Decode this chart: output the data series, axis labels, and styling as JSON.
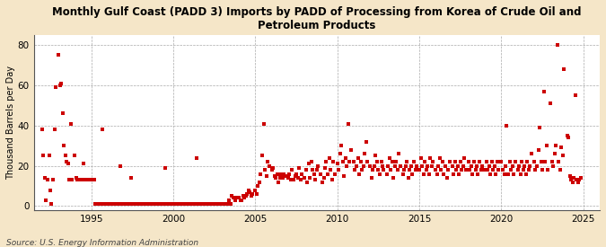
{
  "title": "Monthly Gulf Coast (PADD 3) Imports by PADD of Processing from Korea of Crude Oil and\nPetroleum Products",
  "ylabel": "Thousand Barrels per Day",
  "source": "Source: U.S. Energy Information Administration",
  "figure_bg": "#f5e6c8",
  "axes_bg": "#ffffff",
  "marker_color": "#cc0000",
  "xlim": [
    1991.5,
    2026.0
  ],
  "ylim": [
    -2,
    85
  ],
  "yticks": [
    0,
    20,
    40,
    60,
    80
  ],
  "xticks": [
    1995,
    2000,
    2005,
    2010,
    2015,
    2020,
    2025
  ],
  "data": [
    [
      1992.0,
      38
    ],
    [
      1992.08,
      25
    ],
    [
      1992.17,
      14
    ],
    [
      1992.25,
      3
    ],
    [
      1992.33,
      13
    ],
    [
      1992.42,
      25
    ],
    [
      1992.5,
      8
    ],
    [
      1992.58,
      1
    ],
    [
      1992.67,
      13
    ],
    [
      1992.75,
      38
    ],
    [
      1992.83,
      59
    ],
    [
      1993.0,
      75
    ],
    [
      1993.08,
      60
    ],
    [
      1993.17,
      61
    ],
    [
      1993.25,
      46
    ],
    [
      1993.33,
      30
    ],
    [
      1993.42,
      25
    ],
    [
      1993.5,
      22
    ],
    [
      1993.58,
      21
    ],
    [
      1993.67,
      13
    ],
    [
      1993.75,
      41
    ],
    [
      1993.83,
      13
    ],
    [
      1994.0,
      25
    ],
    [
      1994.08,
      14
    ],
    [
      1994.17,
      13
    ],
    [
      1994.25,
      13
    ],
    [
      1994.33,
      13
    ],
    [
      1994.42,
      13
    ],
    [
      1994.5,
      21
    ],
    [
      1994.58,
      13
    ],
    [
      1994.67,
      13
    ],
    [
      1994.75,
      13
    ],
    [
      1994.83,
      13
    ],
    [
      1995.0,
      13
    ],
    [
      1995.08,
      13
    ],
    [
      1995.17,
      13
    ],
    [
      1995.25,
      1
    ],
    [
      1995.33,
      1
    ],
    [
      1995.42,
      1
    ],
    [
      1995.5,
      1
    ],
    [
      1995.58,
      1
    ],
    [
      1995.67,
      38
    ],
    [
      1995.75,
      1
    ],
    [
      1995.83,
      1
    ],
    [
      1996.0,
      1
    ],
    [
      1996.08,
      1
    ],
    [
      1996.17,
      1
    ],
    [
      1996.25,
      1
    ],
    [
      1996.33,
      1
    ],
    [
      1996.42,
      1
    ],
    [
      1996.5,
      1
    ],
    [
      1996.58,
      1
    ],
    [
      1996.67,
      1
    ],
    [
      1996.75,
      20
    ],
    [
      1996.83,
      1
    ],
    [
      1997.0,
      1
    ],
    [
      1997.08,
      1
    ],
    [
      1997.17,
      1
    ],
    [
      1997.25,
      1
    ],
    [
      1997.33,
      1
    ],
    [
      1997.42,
      14
    ],
    [
      1997.5,
      1
    ],
    [
      1997.58,
      1
    ],
    [
      1997.67,
      1
    ],
    [
      1997.75,
      1
    ],
    [
      1997.83,
      1
    ],
    [
      1998.0,
      1
    ],
    [
      1998.08,
      1
    ],
    [
      1998.17,
      1
    ],
    [
      1998.25,
      1
    ],
    [
      1998.33,
      1
    ],
    [
      1998.42,
      1
    ],
    [
      1998.5,
      1
    ],
    [
      1998.58,
      1
    ],
    [
      1998.67,
      1
    ],
    [
      1998.75,
      1
    ],
    [
      1998.83,
      1
    ],
    [
      1999.0,
      1
    ],
    [
      1999.08,
      1
    ],
    [
      1999.17,
      1
    ],
    [
      1999.25,
      1
    ],
    [
      1999.33,
      1
    ],
    [
      1999.42,
      1
    ],
    [
      1999.5,
      19
    ],
    [
      1999.58,
      1
    ],
    [
      1999.67,
      1
    ],
    [
      1999.75,
      1
    ],
    [
      1999.83,
      1
    ],
    [
      2000.0,
      1
    ],
    [
      2000.08,
      1
    ],
    [
      2000.17,
      1
    ],
    [
      2000.25,
      1
    ],
    [
      2000.33,
      1
    ],
    [
      2000.42,
      1
    ],
    [
      2000.5,
      1
    ],
    [
      2000.58,
      1
    ],
    [
      2000.67,
      1
    ],
    [
      2000.75,
      1
    ],
    [
      2000.83,
      1
    ],
    [
      2001.0,
      1
    ],
    [
      2001.08,
      1
    ],
    [
      2001.17,
      1
    ],
    [
      2001.25,
      1
    ],
    [
      2001.33,
      1
    ],
    [
      2001.42,
      24
    ],
    [
      2001.5,
      1
    ],
    [
      2001.58,
      1
    ],
    [
      2001.67,
      1
    ],
    [
      2001.75,
      1
    ],
    [
      2001.83,
      1
    ],
    [
      2002.0,
      1
    ],
    [
      2002.08,
      1
    ],
    [
      2002.17,
      1
    ],
    [
      2002.25,
      1
    ],
    [
      2002.33,
      1
    ],
    [
      2002.42,
      1
    ],
    [
      2002.5,
      1
    ],
    [
      2002.58,
      1
    ],
    [
      2002.67,
      1
    ],
    [
      2002.75,
      1
    ],
    [
      2002.83,
      1
    ],
    [
      2003.0,
      1
    ],
    [
      2003.08,
      1
    ],
    [
      2003.17,
      1
    ],
    [
      2003.25,
      1
    ],
    [
      2003.33,
      1
    ],
    [
      2003.42,
      3
    ],
    [
      2003.5,
      1
    ],
    [
      2003.58,
      5
    ],
    [
      2003.67,
      4
    ],
    [
      2003.75,
      3
    ],
    [
      2003.83,
      4
    ],
    [
      2004.0,
      4
    ],
    [
      2004.08,
      3
    ],
    [
      2004.17,
      3
    ],
    [
      2004.25,
      5
    ],
    [
      2004.33,
      4
    ],
    [
      2004.42,
      5
    ],
    [
      2004.5,
      6
    ],
    [
      2004.58,
      8
    ],
    [
      2004.67,
      7
    ],
    [
      2004.75,
      5
    ],
    [
      2004.83,
      6
    ],
    [
      2005.0,
      8
    ],
    [
      2005.08,
      6
    ],
    [
      2005.17,
      10
    ],
    [
      2005.25,
      12
    ],
    [
      2005.33,
      16
    ],
    [
      2005.42,
      25
    ],
    [
      2005.5,
      41
    ],
    [
      2005.58,
      18
    ],
    [
      2005.67,
      15
    ],
    [
      2005.75,
      22
    ],
    [
      2005.83,
      20
    ],
    [
      2006.0,
      18
    ],
    [
      2006.08,
      19
    ],
    [
      2006.17,
      15
    ],
    [
      2006.25,
      14
    ],
    [
      2006.33,
      16
    ],
    [
      2006.42,
      12
    ],
    [
      2006.5,
      14
    ],
    [
      2006.58,
      16
    ],
    [
      2006.67,
      14
    ],
    [
      2006.75,
      16
    ],
    [
      2006.83,
      15
    ],
    [
      2007.0,
      14
    ],
    [
      2007.08,
      16
    ],
    [
      2007.17,
      13
    ],
    [
      2007.25,
      18
    ],
    [
      2007.33,
      13
    ],
    [
      2007.42,
      15
    ],
    [
      2007.5,
      16
    ],
    [
      2007.58,
      14
    ],
    [
      2007.67,
      19
    ],
    [
      2007.75,
      13
    ],
    [
      2007.83,
      16
    ],
    [
      2008.0,
      14
    ],
    [
      2008.08,
      18
    ],
    [
      2008.17,
      12
    ],
    [
      2008.25,
      21
    ],
    [
      2008.33,
      14
    ],
    [
      2008.42,
      22
    ],
    [
      2008.5,
      18
    ],
    [
      2008.58,
      16
    ],
    [
      2008.67,
      13
    ],
    [
      2008.75,
      18
    ],
    [
      2008.83,
      20
    ],
    [
      2009.0,
      16
    ],
    [
      2009.08,
      12
    ],
    [
      2009.17,
      14
    ],
    [
      2009.25,
      19
    ],
    [
      2009.33,
      22
    ],
    [
      2009.42,
      16
    ],
    [
      2009.5,
      24
    ],
    [
      2009.58,
      18
    ],
    [
      2009.67,
      13
    ],
    [
      2009.75,
      22
    ],
    [
      2009.83,
      16
    ],
    [
      2010.0,
      21
    ],
    [
      2010.08,
      18
    ],
    [
      2010.17,
      26
    ],
    [
      2010.25,
      30
    ],
    [
      2010.33,
      22
    ],
    [
      2010.42,
      15
    ],
    [
      2010.5,
      24
    ],
    [
      2010.58,
      20
    ],
    [
      2010.67,
      41
    ],
    [
      2010.75,
      22
    ],
    [
      2010.83,
      28
    ],
    [
      2011.0,
      22
    ],
    [
      2011.08,
      18
    ],
    [
      2011.17,
      20
    ],
    [
      2011.25,
      24
    ],
    [
      2011.33,
      16
    ],
    [
      2011.42,
      22
    ],
    [
      2011.5,
      18
    ],
    [
      2011.58,
      20
    ],
    [
      2011.67,
      26
    ],
    [
      2011.75,
      32
    ],
    [
      2011.83,
      22
    ],
    [
      2012.0,
      20
    ],
    [
      2012.08,
      14
    ],
    [
      2012.17,
      18
    ],
    [
      2012.25,
      20
    ],
    [
      2012.33,
      25
    ],
    [
      2012.42,
      22
    ],
    [
      2012.5,
      18
    ],
    [
      2012.58,
      16
    ],
    [
      2012.67,
      22
    ],
    [
      2012.75,
      20
    ],
    [
      2012.83,
      18
    ],
    [
      2013.0,
      16
    ],
    [
      2013.08,
      20
    ],
    [
      2013.17,
      24
    ],
    [
      2013.25,
      18
    ],
    [
      2013.33,
      22
    ],
    [
      2013.42,
      14
    ],
    [
      2013.5,
      20
    ],
    [
      2013.58,
      22
    ],
    [
      2013.67,
      18
    ],
    [
      2013.75,
      26
    ],
    [
      2013.83,
      20
    ],
    [
      2014.0,
      16
    ],
    [
      2014.08,
      18
    ],
    [
      2014.17,
      20
    ],
    [
      2014.25,
      22
    ],
    [
      2014.33,
      14
    ],
    [
      2014.42,
      18
    ],
    [
      2014.5,
      20
    ],
    [
      2014.58,
      16
    ],
    [
      2014.67,
      22
    ],
    [
      2014.75,
      18
    ],
    [
      2014.83,
      20
    ],
    [
      2015.0,
      18
    ],
    [
      2015.08,
      24
    ],
    [
      2015.17,
      20
    ],
    [
      2015.25,
      16
    ],
    [
      2015.33,
      22
    ],
    [
      2015.42,
      18
    ],
    [
      2015.5,
      20
    ],
    [
      2015.58,
      16
    ],
    [
      2015.67,
      24
    ],
    [
      2015.75,
      20
    ],
    [
      2015.83,
      22
    ],
    [
      2016.0,
      18
    ],
    [
      2016.08,
      16
    ],
    [
      2016.17,
      20
    ],
    [
      2016.25,
      24
    ],
    [
      2016.33,
      18
    ],
    [
      2016.42,
      22
    ],
    [
      2016.5,
      16
    ],
    [
      2016.58,
      20
    ],
    [
      2016.67,
      14
    ],
    [
      2016.75,
      18
    ],
    [
      2016.83,
      22
    ],
    [
      2017.0,
      20
    ],
    [
      2017.08,
      16
    ],
    [
      2017.17,
      22
    ],
    [
      2017.25,
      18
    ],
    [
      2017.33,
      20
    ],
    [
      2017.42,
      16
    ],
    [
      2017.5,
      22
    ],
    [
      2017.58,
      18
    ],
    [
      2017.67,
      20
    ],
    [
      2017.75,
      24
    ],
    [
      2017.83,
      18
    ],
    [
      2018.0,
      22
    ],
    [
      2018.08,
      18
    ],
    [
      2018.17,
      20
    ],
    [
      2018.25,
      16
    ],
    [
      2018.33,
      22
    ],
    [
      2018.42,
      18
    ],
    [
      2018.5,
      20
    ],
    [
      2018.58,
      16
    ],
    [
      2018.67,
      22
    ],
    [
      2018.75,
      18
    ],
    [
      2018.83,
      20
    ],
    [
      2019.0,
      18
    ],
    [
      2019.08,
      22
    ],
    [
      2019.17,
      18
    ],
    [
      2019.25,
      20
    ],
    [
      2019.33,
      16
    ],
    [
      2019.42,
      22
    ],
    [
      2019.5,
      18
    ],
    [
      2019.58,
      20
    ],
    [
      2019.67,
      16
    ],
    [
      2019.75,
      22
    ],
    [
      2019.83,
      18
    ],
    [
      2020.0,
      22
    ],
    [
      2020.08,
      18
    ],
    [
      2020.17,
      16
    ],
    [
      2020.25,
      20
    ],
    [
      2020.33,
      40
    ],
    [
      2020.42,
      16
    ],
    [
      2020.5,
      22
    ],
    [
      2020.58,
      18
    ],
    [
      2020.67,
      20
    ],
    [
      2020.75,
      16
    ],
    [
      2020.83,
      22
    ],
    [
      2021.0,
      18
    ],
    [
      2021.08,
      20
    ],
    [
      2021.17,
      16
    ],
    [
      2021.25,
      22
    ],
    [
      2021.33,
      18
    ],
    [
      2021.42,
      20
    ],
    [
      2021.5,
      16
    ],
    [
      2021.58,
      22
    ],
    [
      2021.67,
      18
    ],
    [
      2021.75,
      20
    ],
    [
      2021.83,
      26
    ],
    [
      2022.0,
      22
    ],
    [
      2022.08,
      18
    ],
    [
      2022.17,
      20
    ],
    [
      2022.25,
      28
    ],
    [
      2022.33,
      39
    ],
    [
      2022.42,
      22
    ],
    [
      2022.5,
      18
    ],
    [
      2022.58,
      57
    ],
    [
      2022.67,
      22
    ],
    [
      2022.75,
      30
    ],
    [
      2022.83,
      18
    ],
    [
      2023.0,
      51
    ],
    [
      2023.08,
      22
    ],
    [
      2023.17,
      20
    ],
    [
      2023.25,
      26
    ],
    [
      2023.33,
      30
    ],
    [
      2023.42,
      80
    ],
    [
      2023.5,
      22
    ],
    [
      2023.58,
      18
    ],
    [
      2023.67,
      29
    ],
    [
      2023.75,
      25
    ],
    [
      2023.83,
      68
    ],
    [
      2024.0,
      35
    ],
    [
      2024.08,
      34
    ],
    [
      2024.17,
      15
    ],
    [
      2024.25,
      13
    ],
    [
      2024.33,
      12
    ],
    [
      2024.42,
      14
    ],
    [
      2024.5,
      55
    ],
    [
      2024.58,
      13
    ],
    [
      2024.67,
      12
    ],
    [
      2024.75,
      13
    ],
    [
      2024.83,
      14
    ]
  ]
}
